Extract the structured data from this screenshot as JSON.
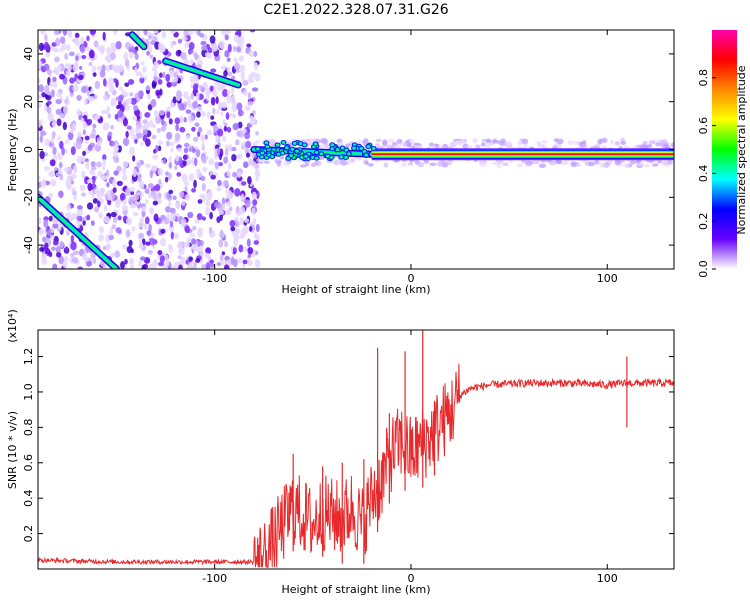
{
  "title": "C2E1.2022.328.07.31.G26",
  "chart_data": [
    {
      "type": "heatmap",
      "xlabel": "Height of straight line (km)",
      "ylabel": "Frequency (Hz)",
      "xlim": [
        -190,
        134
      ],
      "ylim": [
        -50,
        50
      ],
      "xticks": [
        -100,
        0,
        100
      ],
      "xtick_labels": [
        "-100",
        "0",
        "100"
      ],
      "yticks": [
        -40,
        -20,
        0,
        20,
        40
      ],
      "ytick_labels": [
        "-40",
        "-20",
        "0",
        "20",
        "40"
      ],
      "colorbar": {
        "label": "Normalized spectral amplitude",
        "range": [
          0,
          1
        ],
        "ticks": [
          0.0,
          0.2,
          0.4,
          0.6,
          0.8
        ],
        "tick_labels": [
          "0.0",
          "0.2",
          "0.4",
          "0.6",
          "0.8"
        ],
        "colors": [
          "#ffffff",
          "#6600ff",
          "#0000ff",
          "#00ffff",
          "#00ff00",
          "#ffff00",
          "#ff8800",
          "#ff0000",
          "#ff00aa"
        ]
      },
      "features": {
        "noise_region_x": [
          -190,
          -78
        ],
        "tracks": [
          {
            "x": [
              -190,
              -150
            ],
            "y": [
              -20,
              -50
            ]
          },
          {
            "x": [
              -142,
              -136
            ],
            "y": [
              48,
              43
            ]
          },
          {
            "x": [
              -125,
              -88
            ],
            "y": [
              37,
              27
            ]
          },
          {
            "x": [
              -80,
              -20
            ],
            "y": [
              0,
              -2
            ]
          },
          {
            "x": [
              -20,
              134
            ],
            "y": [
              -2,
              -2
            ]
          }
        ]
      }
    },
    {
      "type": "line",
      "xlabel": "Height of straight line (km)",
      "ylabel": "SNR (10 * v/v)",
      "multiplier": "(x10⁴)",
      "xlim": [
        -190,
        134
      ],
      "ylim": [
        0,
        1.35
      ],
      "xticks": [
        -100,
        0,
        100
      ],
      "xtick_labels": [
        "-100",
        "0",
        "100"
      ],
      "yticks": [
        0.2,
        0.4,
        0.6,
        0.8,
        1.0,
        1.2
      ],
      "ytick_labels": [
        "0.2",
        "0.4",
        "0.6",
        "0.8",
        "1.0",
        "1.2"
      ],
      "series": [
        {
          "color": "#e8282a",
          "x": [
            -190,
            -150,
            -100,
            -80,
            -75,
            -70,
            -65,
            -60,
            -55,
            -50,
            -45,
            -40,
            -35,
            -30,
            -25,
            -20,
            -15,
            -10,
            -5,
            0,
            5,
            10,
            15,
            20,
            25,
            30,
            40,
            60,
            80,
            100,
            110,
            120,
            134
          ],
          "y": [
            0.05,
            0.04,
            0.04,
            0.04,
            0.07,
            0.15,
            0.25,
            0.35,
            0.3,
            0.25,
            0.32,
            0.3,
            0.28,
            0.35,
            0.25,
            0.4,
            0.5,
            0.65,
            0.72,
            0.65,
            0.7,
            0.75,
            0.82,
            0.88,
            0.98,
            1.02,
            1.04,
            1.05,
            1.05,
            1.04,
            1.05,
            1.05,
            1.05
          ]
        }
      ],
      "spikes": [
        {
          "x": -60,
          "y": 0.65
        },
        {
          "x": -45,
          "y": 0.58
        },
        {
          "x": -35,
          "y": 0.6
        },
        {
          "x": -24,
          "y": 0.62
        },
        {
          "x": -17,
          "y": 1.25
        },
        {
          "x": -11,
          "y": 0.88
        },
        {
          "x": -3,
          "y": 1.23
        },
        {
          "x": 6,
          "y": 1.35
        },
        {
          "x": 12,
          "y": 0.95
        },
        {
          "x": 110,
          "y": 1.2
        }
      ]
    }
  ]
}
